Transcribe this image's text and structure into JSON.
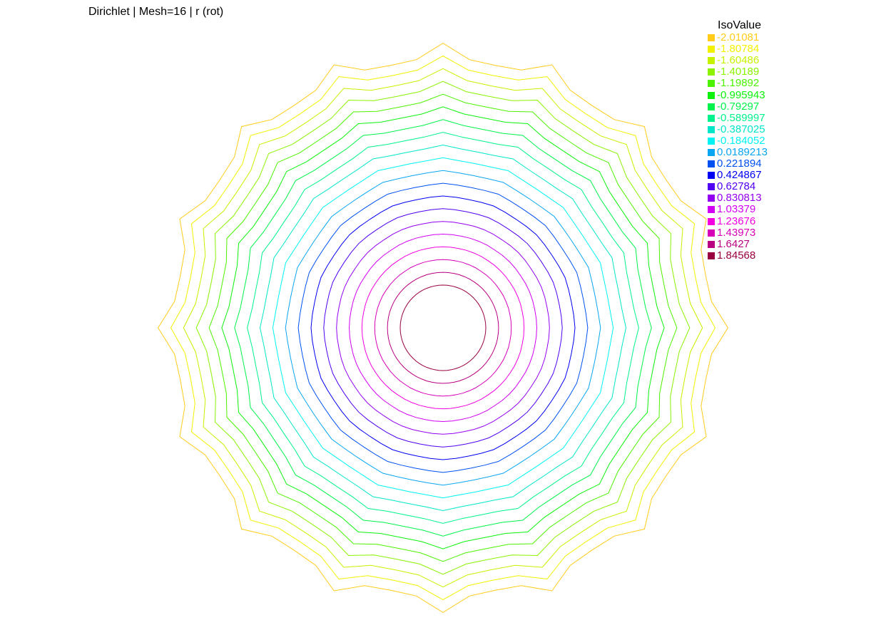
{
  "title": "Dirichlet | Mesh=16 | r (rot)",
  "legend_title": "IsoValue",
  "chart_data": {
    "type": "contour",
    "title": "Dirichlet | Mesh=16 | r (rot)",
    "legend_title": "IsoValue",
    "levels": [
      {
        "value": "-2.01081",
        "color": "#ffcc1a"
      },
      {
        "value": "-1.80784",
        "color": "#f2f200"
      },
      {
        "value": "-1.60486",
        "color": "#c6f200"
      },
      {
        "value": "-1.40189",
        "color": "#8cf200"
      },
      {
        "value": "-1.19892",
        "color": "#4cf200"
      },
      {
        "value": "-0.995943",
        "color": "#0cf20c"
      },
      {
        "value": "-0.79297",
        "color": "#00f24c"
      },
      {
        "value": "-0.589997",
        "color": "#00f28c"
      },
      {
        "value": "-0.387025",
        "color": "#00e6c8"
      },
      {
        "value": "-0.184052",
        "color": "#00f2f2"
      },
      {
        "value": "0.0189213",
        "color": "#0aa6f2"
      },
      {
        "value": "0.221894",
        "color": "#0050f2"
      },
      {
        "value": "0.424867",
        "color": "#0000f2"
      },
      {
        "value": "0.62784",
        "color": "#5000f2"
      },
      {
        "value": "0.830813",
        "color": "#9400f2"
      },
      {
        "value": "1.03379",
        "color": "#d200f2"
      },
      {
        "value": "1.23676",
        "color": "#f200e0"
      },
      {
        "value": "1.43973",
        "color": "#d600b8"
      },
      {
        "value": "1.6427",
        "color": "#b80080"
      },
      {
        "value": "1.84568",
        "color": "#990040"
      }
    ],
    "domain_sides": 16,
    "grid": false,
    "legend_position": "top-right"
  }
}
